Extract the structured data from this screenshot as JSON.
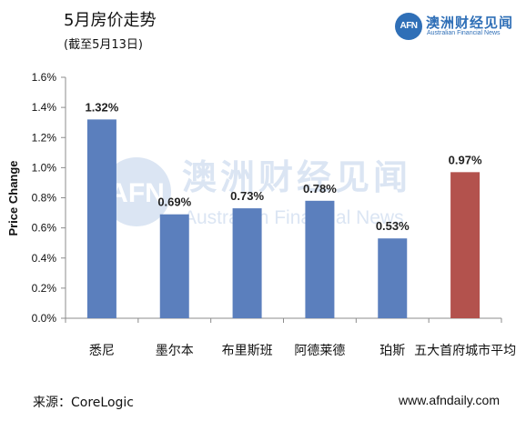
{
  "header": {
    "title": "5月房价走势",
    "subtitle": "(截至5月13日)"
  },
  "logo": {
    "badge": "AFN",
    "name_cn": "澳洲财经见闻",
    "name_en": "Australian Financial News"
  },
  "watermark": {
    "badge": "AFN",
    "name_cn": "澳洲财经见闻",
    "name_en": "Australian Financial News"
  },
  "footer": {
    "source": "来源：CoreLogic",
    "url": "www.afndaily.com"
  },
  "chart_data": {
    "type": "bar",
    "title": "",
    "xlabel": "",
    "ylabel": "Price Change",
    "categories": [
      "悉尼",
      "墨尔本",
      "布里斯班",
      "阿德莱德",
      "珀斯",
      "五大首府城市平均"
    ],
    "values": [
      1.32,
      0.69,
      0.73,
      0.78,
      0.53,
      0.97
    ],
    "value_labels": [
      "1.32%",
      "0.69%",
      "0.73%",
      "0.78%",
      "0.53%",
      "0.97%"
    ],
    "bar_colors": [
      "#5b7fbd",
      "#5b7fbd",
      "#5b7fbd",
      "#5b7fbd",
      "#5b7fbd",
      "#b3524d"
    ],
    "ylim": [
      0,
      1.6
    ],
    "yticks": [
      0,
      0.2,
      0.4,
      0.6,
      0.8,
      1.0,
      1.2,
      1.4,
      1.6
    ],
    "ytick_labels": [
      "0.0%",
      "0.2%",
      "0.4%",
      "0.6%",
      "0.8%",
      "1.0%",
      "1.2%",
      "1.4%",
      "1.6%"
    ],
    "grid": false,
    "legend": "none"
  }
}
